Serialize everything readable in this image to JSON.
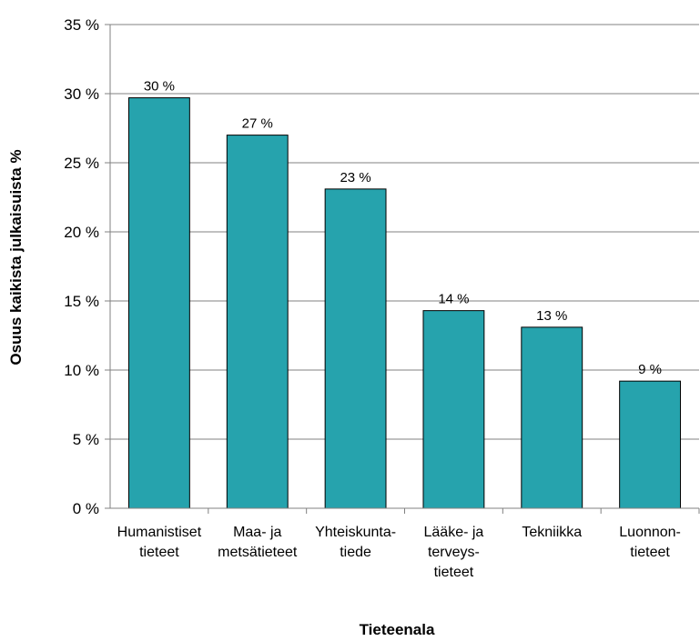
{
  "chart_data": {
    "type": "bar",
    "categories": [
      [
        "Humanistiset",
        "tieteet"
      ],
      [
        "Maa- ja",
        "metsätieteet"
      ],
      [
        "Yhteiskunta-",
        "tiede"
      ],
      [
        "Lääke- ja",
        "terveys-",
        "tieteet"
      ],
      [
        "Tekniikka"
      ],
      [
        "Luonnon-",
        "tieteet"
      ]
    ],
    "values": [
      29.7,
      27.0,
      23.1,
      14.3,
      13.1,
      9.2
    ],
    "data_labels": [
      "30 %",
      "27 %",
      "23 %",
      "14 %",
      "13 %",
      "9 %"
    ],
    "xlabel": "Tieteenala",
    "ylabel": "Osuus kaikista julkaisuista %",
    "ylim": [
      0,
      35
    ],
    "y_ticks": [
      0,
      5,
      10,
      15,
      20,
      25,
      30,
      35
    ],
    "y_tick_labels": [
      "0 %",
      "5 %",
      "10 %",
      "15 %",
      "20 %",
      "25 %",
      "30 %",
      "35 %"
    ],
    "grid": true,
    "colors": {
      "bar": "#26a3ad",
      "bar_edge": "#000000",
      "grid": "#808080",
      "axis": "#808080"
    }
  }
}
